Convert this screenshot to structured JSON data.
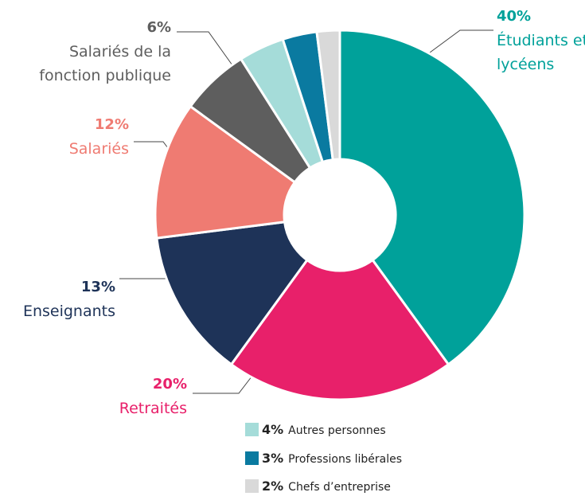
{
  "chart_data": {
    "type": "donut",
    "categories": [
      "Étudiants et lycéens",
      "Retraités",
      "Enseignants",
      "Salariés",
      "Salariés de la fonction publique",
      "Autres personnes",
      "Professions libérales",
      "Chefs d’entreprise"
    ],
    "values": [
      40,
      20,
      13,
      12,
      6,
      4,
      3,
      2
    ],
    "value_labels": [
      "40%",
      "20%",
      "13%",
      "12%",
      "6%",
      "4%",
      "3%",
      "2%"
    ],
    "colors": [
      "#00a19a",
      "#e8206a",
      "#1e3358",
      "#ef7b72",
      "#5e5e5e",
      "#a5dcd9",
      "#0a7aa0",
      "#d9d9d9"
    ]
  }
}
